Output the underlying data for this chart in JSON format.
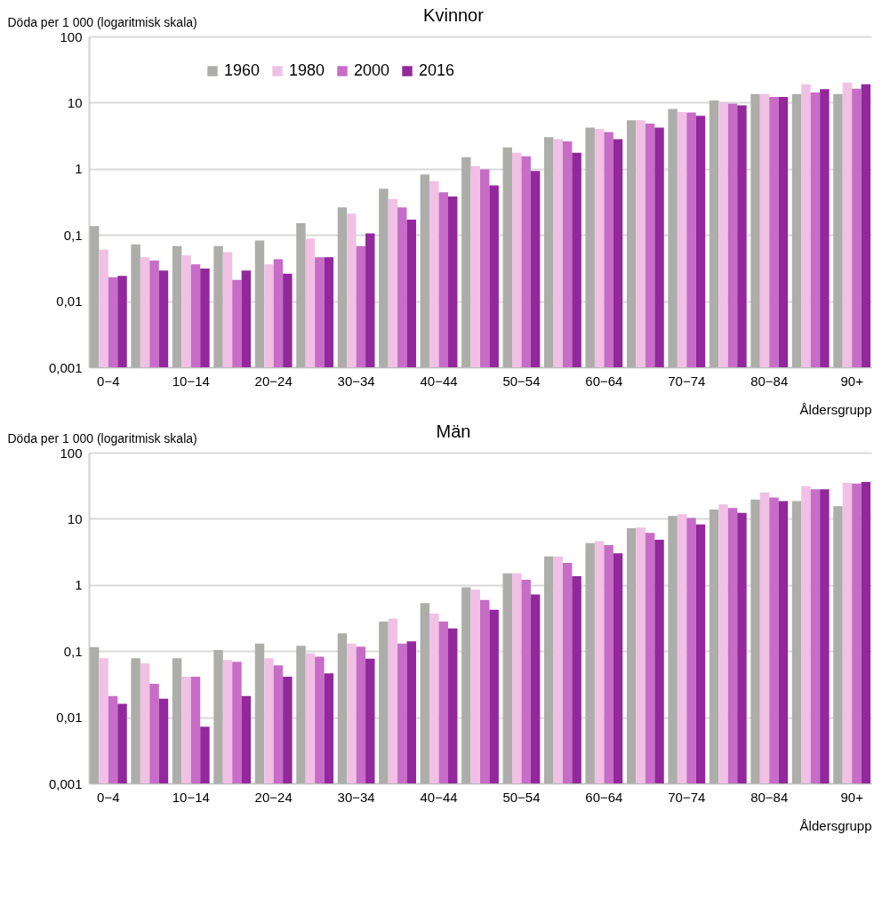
{
  "chart_data": [
    {
      "type": "bar",
      "title": "Kvinnor",
      "ylabel": "Döda per 1 000 (logaritmisk skala)",
      "xlabel": "Åldersgrupp",
      "log": true,
      "grid": "y",
      "legend": "top",
      "categories": [
        "0−4",
        null,
        "10−14",
        null,
        "20−24",
        null,
        "30−34",
        null,
        "40−44",
        null,
        "50−54",
        null,
        "60−64",
        null,
        "70−74",
        null,
        "80−84",
        null,
        "90+"
      ],
      "ylim": [
        0.001,
        100
      ],
      "yticks": [
        {
          "value": 0.001,
          "label": "0,001"
        },
        {
          "value": 0.01,
          "label": "0,01"
        },
        {
          "value": 0.1,
          "label": "0,1"
        },
        1,
        10,
        100
      ],
      "series": [
        {
          "name": "1960",
          "color": "#adadaa",
          "values": [
            0.136,
            0.072,
            0.068,
            0.068,
            0.082,
            0.15,
            0.26,
            0.5,
            0.82,
            1.5,
            2.1,
            3.0,
            4.2,
            5.4,
            8.0,
            10.8,
            13.5,
            13.5,
            13.5
          ]
        },
        {
          "name": "1980",
          "color": "#f0c1e4",
          "values": [
            0.06,
            0.046,
            0.049,
            0.055,
            0.036,
            0.088,
            0.21,
            0.35,
            0.65,
            1.1,
            1.75,
            2.8,
            4.0,
            5.4,
            7.2,
            10.2,
            13.5,
            19,
            20
          ]
        },
        {
          "name": "2000",
          "color": "#c76cc7",
          "values": [
            0.023,
            0.041,
            0.036,
            0.021,
            0.043,
            0.046,
            0.068,
            0.26,
            0.44,
            0.98,
            1.55,
            2.6,
            3.6,
            4.8,
            7.1,
            9.7,
            12.2,
            14.2,
            16.2
          ]
        },
        {
          "name": "2016",
          "color": "#92289c",
          "values": [
            0.024,
            0.029,
            0.031,
            0.029,
            0.026,
            0.046,
            0.105,
            0.17,
            0.38,
            0.56,
            0.93,
            1.75,
            2.8,
            4.2,
            6.3,
            9.1,
            12.2,
            16,
            19
          ]
        }
      ]
    },
    {
      "type": "bar",
      "title": "Män",
      "ylabel": "Döda per 1 000 (logaritmisk skala)",
      "xlabel": "Åldersgrupp",
      "log": true,
      "grid": "y",
      "legend": "top",
      "categories": [
        "0−4",
        null,
        "10−14",
        null,
        "20−24",
        null,
        "30−34",
        null,
        "40−44",
        null,
        "50−54",
        null,
        "60−64",
        null,
        "70−74",
        null,
        "80−84",
        null,
        "90+"
      ],
      "ylim": [
        0.001,
        100
      ],
      "yticks": [
        {
          "value": 0.001,
          "label": "0,001"
        },
        {
          "value": 0.01,
          "label": "0,01"
        },
        {
          "value": 0.1,
          "label": "0,1"
        },
        1,
        10,
        100
      ],
      "series": [
        {
          "name": "1960",
          "color": "#adadaa",
          "values": [
            0.115,
            0.078,
            0.078,
            0.104,
            0.13,
            0.12,
            0.185,
            0.28,
            0.53,
            0.92,
            1.5,
            2.7,
            4.3,
            7.2,
            11,
            13.8,
            19.5,
            18.5,
            15.5
          ]
        },
        {
          "name": "1980",
          "color": "#f0c1e4",
          "values": [
            0.078,
            0.065,
            0.041,
            0.073,
            0.078,
            0.093,
            0.13,
            0.31,
            0.37,
            0.85,
            1.5,
            2.7,
            4.6,
            7.4,
            11.7,
            16.5,
            25,
            31,
            35
          ]
        },
        {
          "name": "2000",
          "color": "#c76cc7",
          "values": [
            0.021,
            0.032,
            0.041,
            0.069,
            0.061,
            0.082,
            0.117,
            0.13,
            0.28,
            0.59,
            1.2,
            2.15,
            4.0,
            6.1,
            10.3,
            14.6,
            21,
            28,
            34
          ]
        },
        {
          "name": "2016",
          "color": "#92289c",
          "values": [
            0.016,
            0.019,
            0.0072,
            0.021,
            0.041,
            0.046,
            0.077,
            0.14,
            0.22,
            0.42,
            0.72,
            1.35,
            3.0,
            4.8,
            8.2,
            12.3,
            18.5,
            28,
            36
          ]
        }
      ]
    }
  ]
}
